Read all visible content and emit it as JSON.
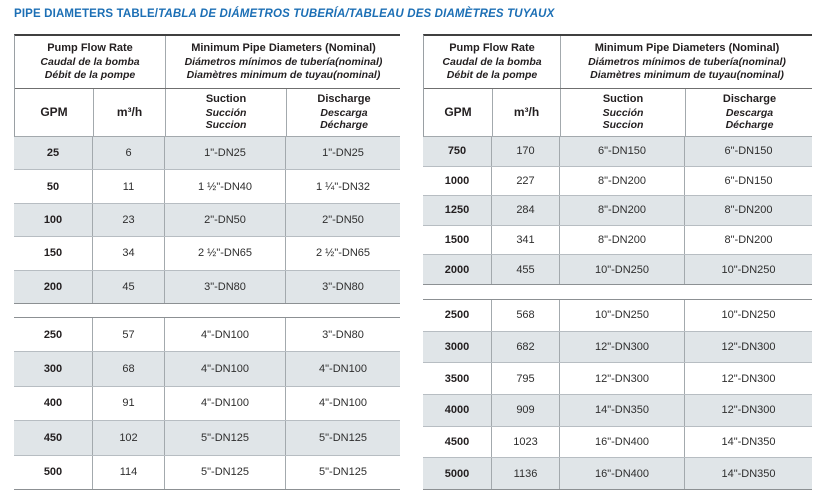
{
  "title": {
    "en": "PIPE DIAMETERS TABLE/",
    "intl": "TABLA DE DIÁMETROS TUBERÍA/TABLEAU DES DIAMÈTRES TUYAUX"
  },
  "colors": {
    "title_blue": "#1c6fb5",
    "row_shade": "#e0e5e8",
    "grid_line": "#a3a9ad",
    "text": "#231f20"
  },
  "header": {
    "flow_group": {
      "en": "Pump Flow Rate",
      "es": "Caudal de la bomba",
      "fr": "Débit de la pompe"
    },
    "diameter_group": {
      "en": "Minimum Pipe Diameters (Nominal)",
      "es": "Diámetros mínimos de tubería(nominal)",
      "fr": "Diamètres minimum de tuyau(nominal)"
    },
    "col_gpm": "GPM",
    "col_m3h": "m³/h",
    "col_suction": {
      "en": "Suction",
      "es": "Succión",
      "fr": "Succion"
    },
    "col_discharge": {
      "en": "Discharge",
      "es": "Descarga",
      "fr": "Décharge"
    }
  },
  "tables": [
    {
      "id": "left",
      "sections": [
        [
          [
            "25",
            "6",
            "1\"-DN25",
            "1\"-DN25"
          ],
          [
            "50",
            "11",
            "1 ½\"-DN40",
            "1 ¼\"-DN32"
          ],
          [
            "100",
            "23",
            "2\"-DN50",
            "2\"-DN50"
          ],
          [
            "150",
            "34",
            "2 ½\"-DN65",
            "2 ½\"-DN65"
          ],
          [
            "200",
            "45",
            "3\"-DN80",
            "3\"-DN80"
          ]
        ],
        [
          [
            "250",
            "57",
            "4\"-DN100",
            "3\"-DN80"
          ],
          [
            "300",
            "68",
            "4\"-DN100",
            "4\"-DN100"
          ],
          [
            "400",
            "91",
            "4\"-DN100",
            "4\"-DN100"
          ],
          [
            "450",
            "102",
            "5\"-DN125",
            "5\"-DN125"
          ],
          [
            "500",
            "114",
            "5\"-DN125",
            "5\"-DN125"
          ]
        ]
      ]
    },
    {
      "id": "right",
      "sections": [
        [
          [
            "750",
            "170",
            "6\"-DN150",
            "6\"-DN150"
          ],
          [
            "1000",
            "227",
            "8\"-DN200",
            "6\"-DN150"
          ],
          [
            "1250",
            "284",
            "8\"-DN200",
            "8\"-DN200"
          ],
          [
            "1500",
            "341",
            "8\"-DN200",
            "8\"-DN200"
          ],
          [
            "2000",
            "455",
            "10\"-DN250",
            "10\"-DN250"
          ]
        ],
        [
          [
            "2500",
            "568",
            "10\"-DN250",
            "10\"-DN250"
          ],
          [
            "3000",
            "682",
            "12\"-DN300",
            "12\"-DN300"
          ],
          [
            "3500",
            "795",
            "12\"-DN300",
            "12\"-DN300"
          ],
          [
            "4000",
            "909",
            "14\"-DN350",
            "12\"-DN300"
          ],
          [
            "4500",
            "1023",
            "16\"-DN400",
            "14\"-DN350"
          ],
          [
            "5000",
            "1136",
            "16\"-DN400",
            "14\"-DN350"
          ]
        ]
      ]
    }
  ]
}
